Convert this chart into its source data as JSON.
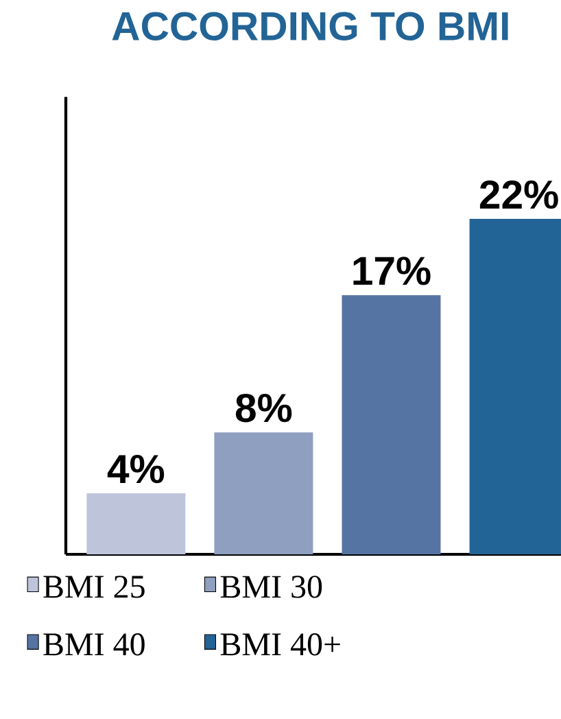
{
  "chart_data": {
    "type": "bar",
    "title": "ACCORDING TO BMI",
    "categories": [
      null,
      null,
      null,
      null
    ],
    "series": [
      {
        "name": "BMI 25",
        "color": "#bec5db",
        "values": [
          4,
          null,
          null,
          null
        ],
        "value_labels": [
          "4%",
          null,
          null,
          null
        ]
      },
      {
        "name": "BMI 30",
        "color": "#8f9fbf",
        "values": [
          null,
          8,
          null,
          null
        ],
        "value_labels": [
          null,
          "8%",
          null,
          null
        ]
      },
      {
        "name": "BMI 40",
        "color": "#5674a3",
        "values": [
          null,
          null,
          17,
          null
        ],
        "value_labels": [
          null,
          null,
          "17%",
          null
        ]
      },
      {
        "name": "BMI 40+",
        "color": "#236496",
        "values": [
          null,
          null,
          null,
          22
        ],
        "value_labels": [
          null,
          null,
          null,
          "22%"
        ]
      }
    ],
    "stacked": true,
    "ylim": [
      0,
      30
    ],
    "legend": "bottom"
  }
}
